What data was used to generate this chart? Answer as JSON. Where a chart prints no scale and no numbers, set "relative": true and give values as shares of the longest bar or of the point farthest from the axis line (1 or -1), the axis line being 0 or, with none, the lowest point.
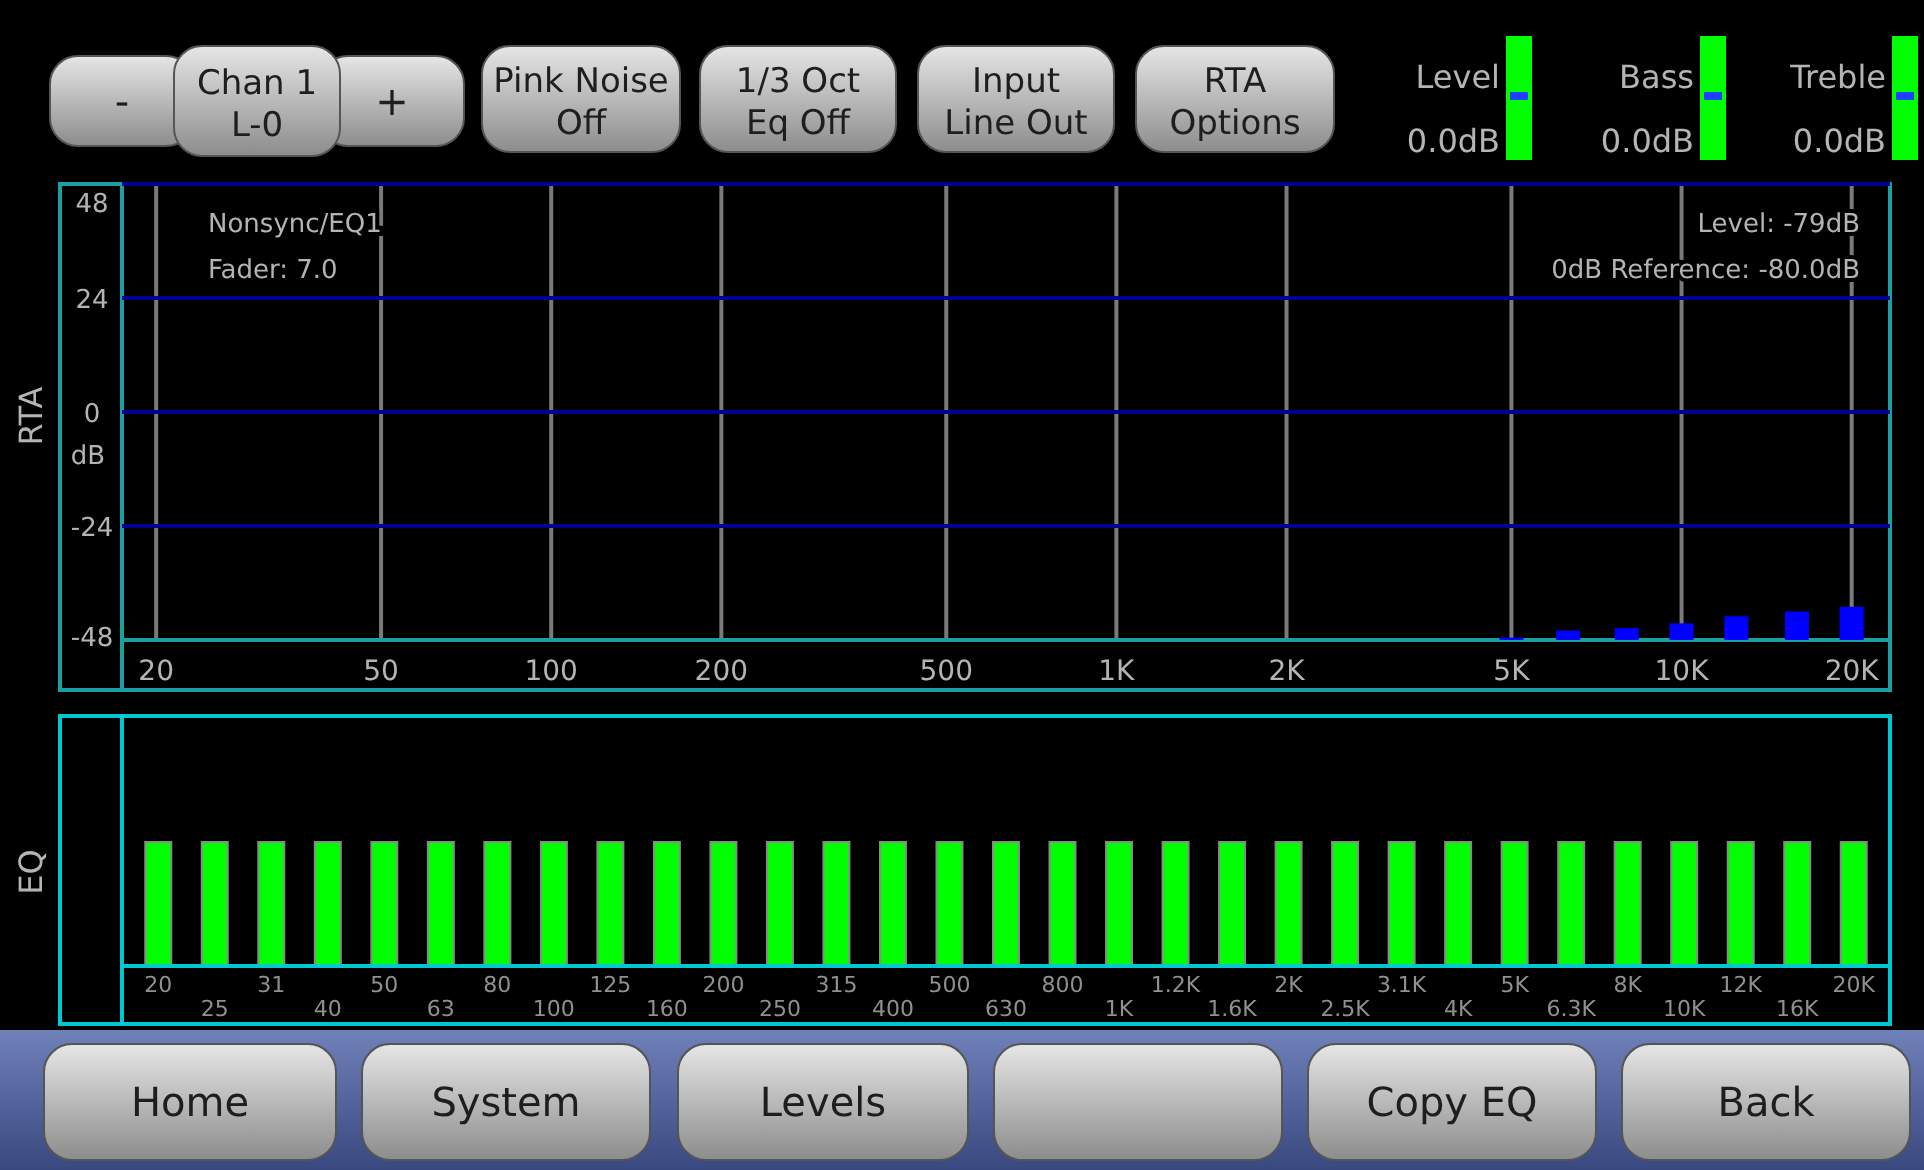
{
  "chart_data": [
    {
      "type": "bar",
      "ylabel": "RTA",
      "x": [
        5000,
        6300,
        8000,
        10000,
        12500,
        16000,
        20000
      ],
      "base": [
        -48,
        -48,
        -48,
        -48,
        -48,
        -48,
        -48
      ],
      "values": [
        0.5,
        2,
        2.5,
        3.5,
        5,
        6,
        7
      ],
      "color": "#0000ff",
      "log": "x",
      "xlim": [
        17.4,
        23000
      ],
      "xticks": [
        20,
        50,
        100,
        200,
        500,
        {
          "value": 1000,
          "label": "1K"
        },
        {
          "value": 2000,
          "label": "2K"
        },
        {
          "value": 5000,
          "label": "5K"
        },
        {
          "value": 10000,
          "label": "10K"
        },
        {
          "value": 20000,
          "label": "20K"
        }
      ],
      "ylim": [
        -48,
        48
      ],
      "yticks": [
        48,
        24,
        0,
        -24,
        -48
      ],
      "grid": true,
      "annotations": [
        "dB",
        "Nonsync/EQ1",
        "Fader: 7.0",
        "Level: -79dB",
        "0dB Reference: -80.0dB"
      ]
    },
    {
      "type": "bar",
      "ylabel": "EQ",
      "relative": true,
      "color": "#00ff00",
      "categories": [
        "20",
        "25",
        "31",
        "40",
        "50",
        "63",
        "80",
        "100",
        "125",
        "160",
        "200",
        "250",
        "315",
        "400",
        "500",
        "630",
        "800",
        "1K",
        "1.2K",
        "1.6K",
        "2K",
        "2.5K",
        "3.1K",
        "4K",
        "5K",
        "6.3K",
        "8K",
        "10K",
        "12K",
        "16K",
        "20K"
      ],
      "values": [
        1,
        1,
        1,
        1,
        1,
        1,
        1,
        1,
        1,
        1,
        1,
        1,
        1,
        1,
        1,
        1,
        1,
        1,
        1,
        1,
        1,
        1,
        1,
        1,
        1,
        1,
        1,
        1,
        1,
        1,
        1
      ]
    },
    {
      "type": "other",
      "annotations": [
        "-",
        "Chan 1\nL-0",
        "+",
        "Pink Noise\nOff",
        "1/3 Oct\nEq Off",
        "Input\nLine Out",
        "RTA\nOptions",
        "Level\n0.0dB",
        "Bass\n0.0dB",
        "Treble\n0.0dB",
        "Home",
        "System",
        "Levels",
        "Copy EQ",
        "Back"
      ]
    }
  ]
}
